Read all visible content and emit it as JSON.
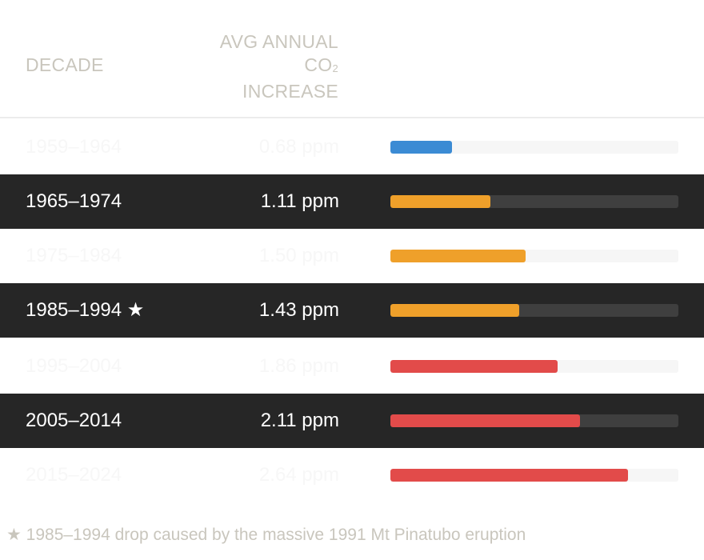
{
  "header": {
    "decade": "DECADE",
    "value_line1": "AVG ANNUAL",
    "value_line2": "CO",
    "value_sub": "2",
    "value_line3": "INCREASE"
  },
  "footnote": "★ 1985–1994 drop caused by the massive 1991 Mt Pinatubo eruption",
  "colors": {
    "blue": "#3b8bd4",
    "orange": "#efa02a",
    "red": "#e24b4a"
  },
  "chart_data": {
    "type": "bar",
    "orientation": "horizontal",
    "xlim": [
      0,
      3.2
    ],
    "rows": [
      {
        "decade": "1959–1964",
        "value": 0.68,
        "value_text": "0.68 ppm",
        "color": "#3b8bd4",
        "style": "light"
      },
      {
        "decade": "1965–1974",
        "value": 1.11,
        "value_text": "1.11 ppm",
        "color": "#efa02a",
        "style": "dark"
      },
      {
        "decade": "1975–1984",
        "value": 1.5,
        "value_text": "1.50 ppm",
        "color": "#efa02a",
        "style": "light"
      },
      {
        "decade": "1985–1994 ★",
        "value": 1.43,
        "value_text": "1.43 ppm",
        "color": "#efa02a",
        "style": "dark"
      },
      {
        "decade": "1995–2004",
        "value": 1.86,
        "value_text": "1.86 ppm",
        "color": "#e24b4a",
        "style": "light"
      },
      {
        "decade": "2005–2014",
        "value": 2.11,
        "value_text": "2.11 ppm",
        "color": "#e24b4a",
        "style": "dark"
      },
      {
        "decade": "2015–2024",
        "value": 2.64,
        "value_text": "2.64 ppm",
        "color": "#e24b4a",
        "style": "light"
      }
    ]
  }
}
